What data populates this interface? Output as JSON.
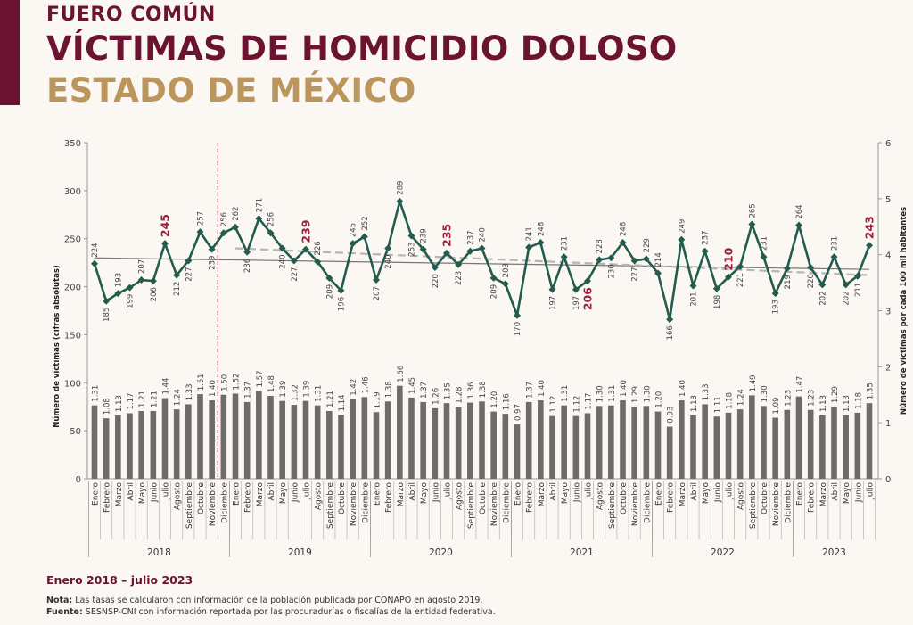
{
  "header": {
    "kicker": "FUERO COMÚN",
    "title": "VÍCTIMAS DE HOMICIDIO DOLOSO",
    "subtitle": "ESTADO DE MÉXICO"
  },
  "footer": {
    "period": "Enero 2018 – julio 2023",
    "note_label": "Nota:",
    "note_text": " Las tasas se calcularon con información de la población publicada por CONAPO en agosto 2019.",
    "source_label": "Fuente:",
    "source_text": " SESNSP-CNI con información reportada por las procuradurías o fiscalías de la entidad federativa."
  },
  "chart_data": {
    "type": "line+bar",
    "ylabel_left": "Número de víctimas (cifras absolutas)",
    "ylabel_right": "Número de víctimas por cada 100 mil habitantes",
    "ylim_left": [
      0,
      350
    ],
    "yticks_left": [
      0,
      50,
      100,
      150,
      200,
      250,
      300,
      350
    ],
    "ylim_right": [
      0,
      6
    ],
    "yticks_right": [
      0,
      1,
      2,
      3,
      4,
      5,
      6
    ],
    "months": [
      "Enero",
      "Febrero",
      "Marzo",
      "Abril",
      "Mayo",
      "Junio",
      "Julio",
      "Agosto",
      "Septiembre",
      "Octubre",
      "Noviembre",
      "Diciembre"
    ],
    "years": [
      "2018",
      "2019",
      "2020",
      "2021",
      "2022",
      "2023"
    ],
    "victims": [
      224,
      185,
      193,
      199,
      207,
      206,
      245,
      212,
      227,
      257,
      239,
      256,
      262,
      236,
      271,
      256,
      240,
      227,
      239,
      226,
      209,
      196,
      245,
      252,
      207,
      240,
      289,
      253,
      239,
      220,
      235,
      223,
      237,
      240,
      209,
      203,
      170,
      241,
      246,
      197,
      231,
      197,
      206,
      228,
      230,
      246,
      227,
      229,
      214,
      166,
      249,
      201,
      237,
      198,
      210,
      221,
      265,
      231,
      193,
      219,
      264,
      220,
      202,
      231,
      202,
      211,
      243
    ],
    "rates": [
      1.31,
      1.08,
      1.13,
      1.17,
      1.21,
      1.21,
      1.44,
      1.24,
      1.33,
      1.51,
      1.4,
      1.5,
      1.52,
      1.37,
      1.57,
      1.48,
      1.39,
      1.32,
      1.39,
      1.31,
      1.21,
      1.14,
      1.42,
      1.46,
      1.19,
      1.38,
      1.66,
      1.45,
      1.37,
      1.26,
      1.35,
      1.28,
      1.36,
      1.38,
      1.2,
      1.16,
      0.97,
      1.37,
      1.4,
      1.12,
      1.31,
      1.12,
      1.17,
      1.3,
      1.31,
      1.4,
      1.29,
      1.3,
      1.2,
      0.93,
      1.4,
      1.13,
      1.33,
      1.11,
      1.18,
      1.24,
      1.49,
      1.3,
      1.09,
      1.23,
      1.47,
      1.23,
      1.13,
      1.29,
      1.13,
      1.18,
      1.35
    ],
    "highlighted_month": "Julio",
    "trend_solid": {
      "from": "Enero 2018",
      "to": "Julio 2023",
      "values": [
        230,
        218
      ]
    },
    "trend_dashed": {
      "from": "Enero 2019",
      "to": "Julio 2023",
      "values": [
        240,
        212
      ]
    },
    "marker_line_between": [
      "Noviembre 2018",
      "Diciembre 2018"
    ],
    "colors": {
      "line": "#235b4e",
      "bars": "#6f6b69",
      "highlight": "#9f2241",
      "title": "#6b1431",
      "subtitle": "#bc955c",
      "trend": "#777777",
      "trend_dashed": "#b5b5b5"
    }
  }
}
